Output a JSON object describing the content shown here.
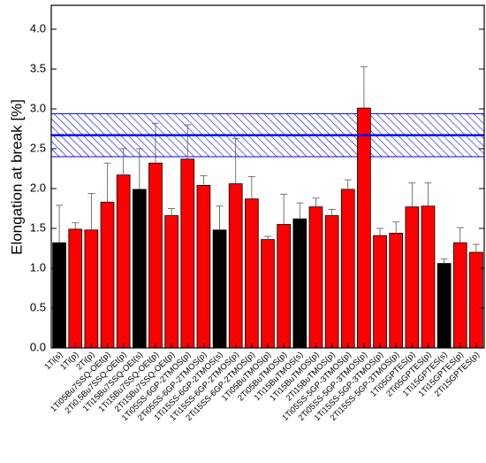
{
  "chart_data": {
    "type": "bar",
    "y_label": "Elongation at break [%]",
    "categories": [
      "1Ti(s)",
      "1Ti(p)",
      "2Ti(p)",
      "1Ti05Bu7SSQ-OEt(p)",
      "2Ti0,5Bu7SSQ-OEt(p)",
      "1Ti15Bu7SSQ-OEt(s)",
      "1Ti15Bu7SSQ-OEt(p)",
      "2Ti15Bu7SSQ-OEt(p)",
      "1Ti05SS-6GP-2TMOS(p)",
      "2Ti05SS-6GP-2TMOS(p)",
      "1Ti15SS-6GP-2TMOS(s)",
      "1Ti15SS-6GP-2TMOS(p)",
      "2Ti15SS-6GP-2TMOS(p)",
      "1Ti05BuTMOS(p)",
      "2Ti05BuTMOS(p)",
      "1Ti15BuTMOS(s)",
      "1Ti15BuTMOS(p)",
      "2Ti15BuTMOS(p)",
      "1Ti05SS-5GP-3TMOS(p)",
      "2Ti05SS-5GP-3TMOS(p)",
      "1Ti15SS-5GP-3TMOS(p)",
      "2Ti15SS-5GP-3TMOS(p)",
      "1Ti05GPTES(p)",
      "2Ti05GPTES(p)",
      "1Ti15GPTES(s)",
      "1Ti15GPTES(p)",
      "2Ti15GPTES(p)"
    ],
    "values": [
      1.32,
      1.49,
      1.48,
      1.83,
      2.17,
      1.99,
      2.32,
      1.66,
      2.37,
      2.04,
      1.48,
      2.06,
      1.87,
      1.36,
      1.55,
      1.62,
      1.77,
      1.66,
      1.99,
      3.01,
      1.41,
      1.44,
      1.77,
      1.78,
      1.06,
      1.32,
      1.2
    ],
    "errors": [
      0.47,
      0.08,
      0.46,
      0.49,
      0.33,
      0.51,
      0.5,
      0.09,
      0.43,
      0.12,
      0.3,
      0.57,
      0.28,
      0.04,
      0.38,
      0.2,
      0.11,
      0.08,
      0.12,
      0.52,
      0.09,
      0.14,
      0.3,
      0.29,
      0.06,
      0.19,
      0.1
    ],
    "colors": [
      "#000000",
      "#ff0000",
      "#ff0000",
      "#ff0000",
      "#ff0000",
      "#000000",
      "#ff0000",
      "#ff0000",
      "#ff0000",
      "#ff0000",
      "#000000",
      "#ff0000",
      "#ff0000",
      "#ff0000",
      "#ff0000",
      "#000000",
      "#ff0000",
      "#ff0000",
      "#ff0000",
      "#ff0000",
      "#ff0000",
      "#ff0000",
      "#ff0000",
      "#ff0000",
      "#000000",
      "#ff0000",
      "#ff0000"
    ],
    "reference": {
      "value": 2.67,
      "low": 2.4,
      "high": 2.94,
      "color": "#0000ff"
    },
    "ylim": [
      0,
      4.3
    ],
    "yticks": [
      {
        "value": 0,
        "label": "0.0"
      },
      {
        "value": 0.5,
        "label": "0.5"
      },
      {
        "value": 1,
        "label": "1.0"
      },
      {
        "value": 1.5,
        "label": "1.5"
      },
      {
        "value": 2,
        "label": "2.0"
      },
      {
        "value": 2.5,
        "label": "2.5"
      },
      {
        "value": 3,
        "label": "3.0"
      },
      {
        "value": 3.5,
        "label": "3.5"
      },
      {
        "value": 4,
        "label": "4.0"
      }
    ]
  }
}
